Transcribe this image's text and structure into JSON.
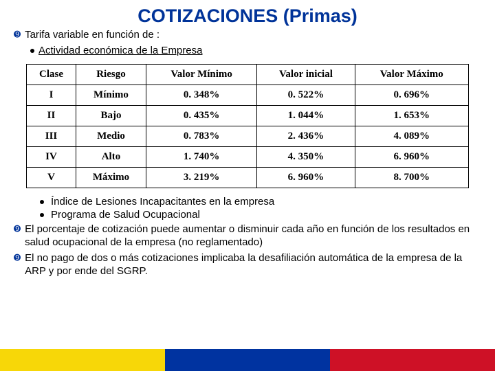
{
  "title": {
    "text": "COTIZACIONES (Primas)",
    "color": "#003399",
    "fontsize": 27
  },
  "bullets": {
    "b1": "Tarifa variable en función de :",
    "b1a": "Actividad económica de la Empresa",
    "note1": "Índice de Lesiones Incapacitantes en la empresa",
    "note2": "Programa de Salud Ocupacional",
    "p2": "El porcentaje de cotización puede aumentar o disminuir cada año en función de los resultados en salud ocupacional de la empresa (no reglamentado)",
    "p3": "El no pago de dos o más cotizaciones implicaba la desafiliación automática de la empresa de la ARP y por ende del SGRP."
  },
  "bullet_icon": "➒",
  "bullet_color": "#003399",
  "table": {
    "columns": [
      "Clase",
      "Riesgo",
      "Valor Mínimo",
      "Valor inicial",
      "Valor Máximo"
    ],
    "rows": [
      [
        "I",
        "Mínimo",
        "0. 348%",
        "0. 522%",
        "0. 696%"
      ],
      [
        "II",
        "Bajo",
        "0. 435%",
        "1. 044%",
        "1. 653%"
      ],
      [
        "III",
        "Medio",
        "0. 783%",
        "2. 436%",
        "4. 089%"
      ],
      [
        "IV",
        "Alto",
        "1. 740%",
        "4. 350%",
        "6. 960%"
      ],
      [
        "V",
        "Máximo",
        "3. 219%",
        "6. 960%",
        "8. 700%"
      ]
    ]
  },
  "flag_colors": [
    "#f7d708",
    "#0033a0",
    "#ce1126"
  ]
}
